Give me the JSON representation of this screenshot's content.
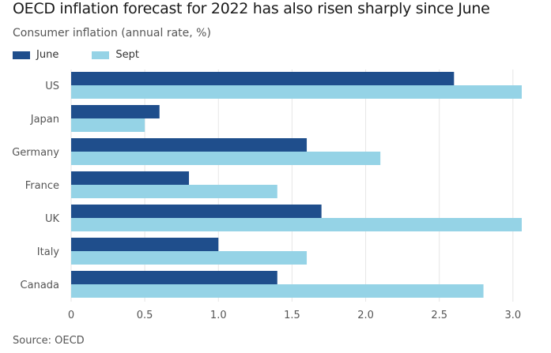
{
  "title": "OECD inflation forecast for 2022 has also risen sharply since June",
  "subtitle": "Consumer inflation (annual rate, %)",
  "source": "Source: OECD",
  "chart_data": {
    "type": "bar",
    "orientation": "horizontal",
    "categories": [
      "US",
      "Japan",
      "Germany",
      "France",
      "UK",
      "Italy",
      "Canada"
    ],
    "series": [
      {
        "name": "June",
        "color": "#1f4e8c",
        "values": [
          2.6,
          0.6,
          1.6,
          0.8,
          1.7,
          1.0,
          1.4
        ]
      },
      {
        "name": "Sept",
        "color": "#95d3e6",
        "values": [
          3.1,
          0.5,
          2.1,
          1.4,
          3.1,
          1.6,
          2.8
        ]
      }
    ],
    "xticks": [
      "0",
      "0.5",
      "1.0",
      "1.5",
      "2.0",
      "2.5",
      "3.0"
    ],
    "xlim": [
      0,
      3.06
    ],
    "grid": true,
    "legend": "top-left"
  }
}
